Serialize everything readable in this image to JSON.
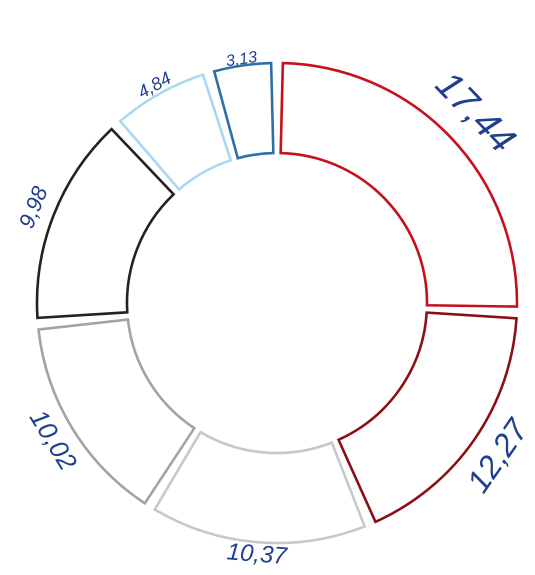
{
  "chart_data": {
    "type": "pie",
    "variant": "donut",
    "title": "",
    "start": "top",
    "direction": "clockwise",
    "segments": [
      {
        "label": "17,44",
        "value": 17.44,
        "stroke": "#c5111e"
      },
      {
        "label": "12,27",
        "value": 12.27,
        "stroke": "#8b0f16"
      },
      {
        "label": "10,37",
        "value": 10.37,
        "stroke": "#c8c8c8"
      },
      {
        "label": "10,02",
        "value": 10.02,
        "stroke": "#a3a3a3"
      },
      {
        "label": "9,98",
        "value": 9.98,
        "stroke": "#222222"
      },
      {
        "label": "4,84",
        "value": 4.84,
        "stroke": "#a9d8f0"
      },
      {
        "label": "3,13",
        "value": 3.13,
        "stroke": "#2f6fa8"
      }
    ],
    "label_color": "#1f3f8f",
    "fill": "#ffffff"
  }
}
